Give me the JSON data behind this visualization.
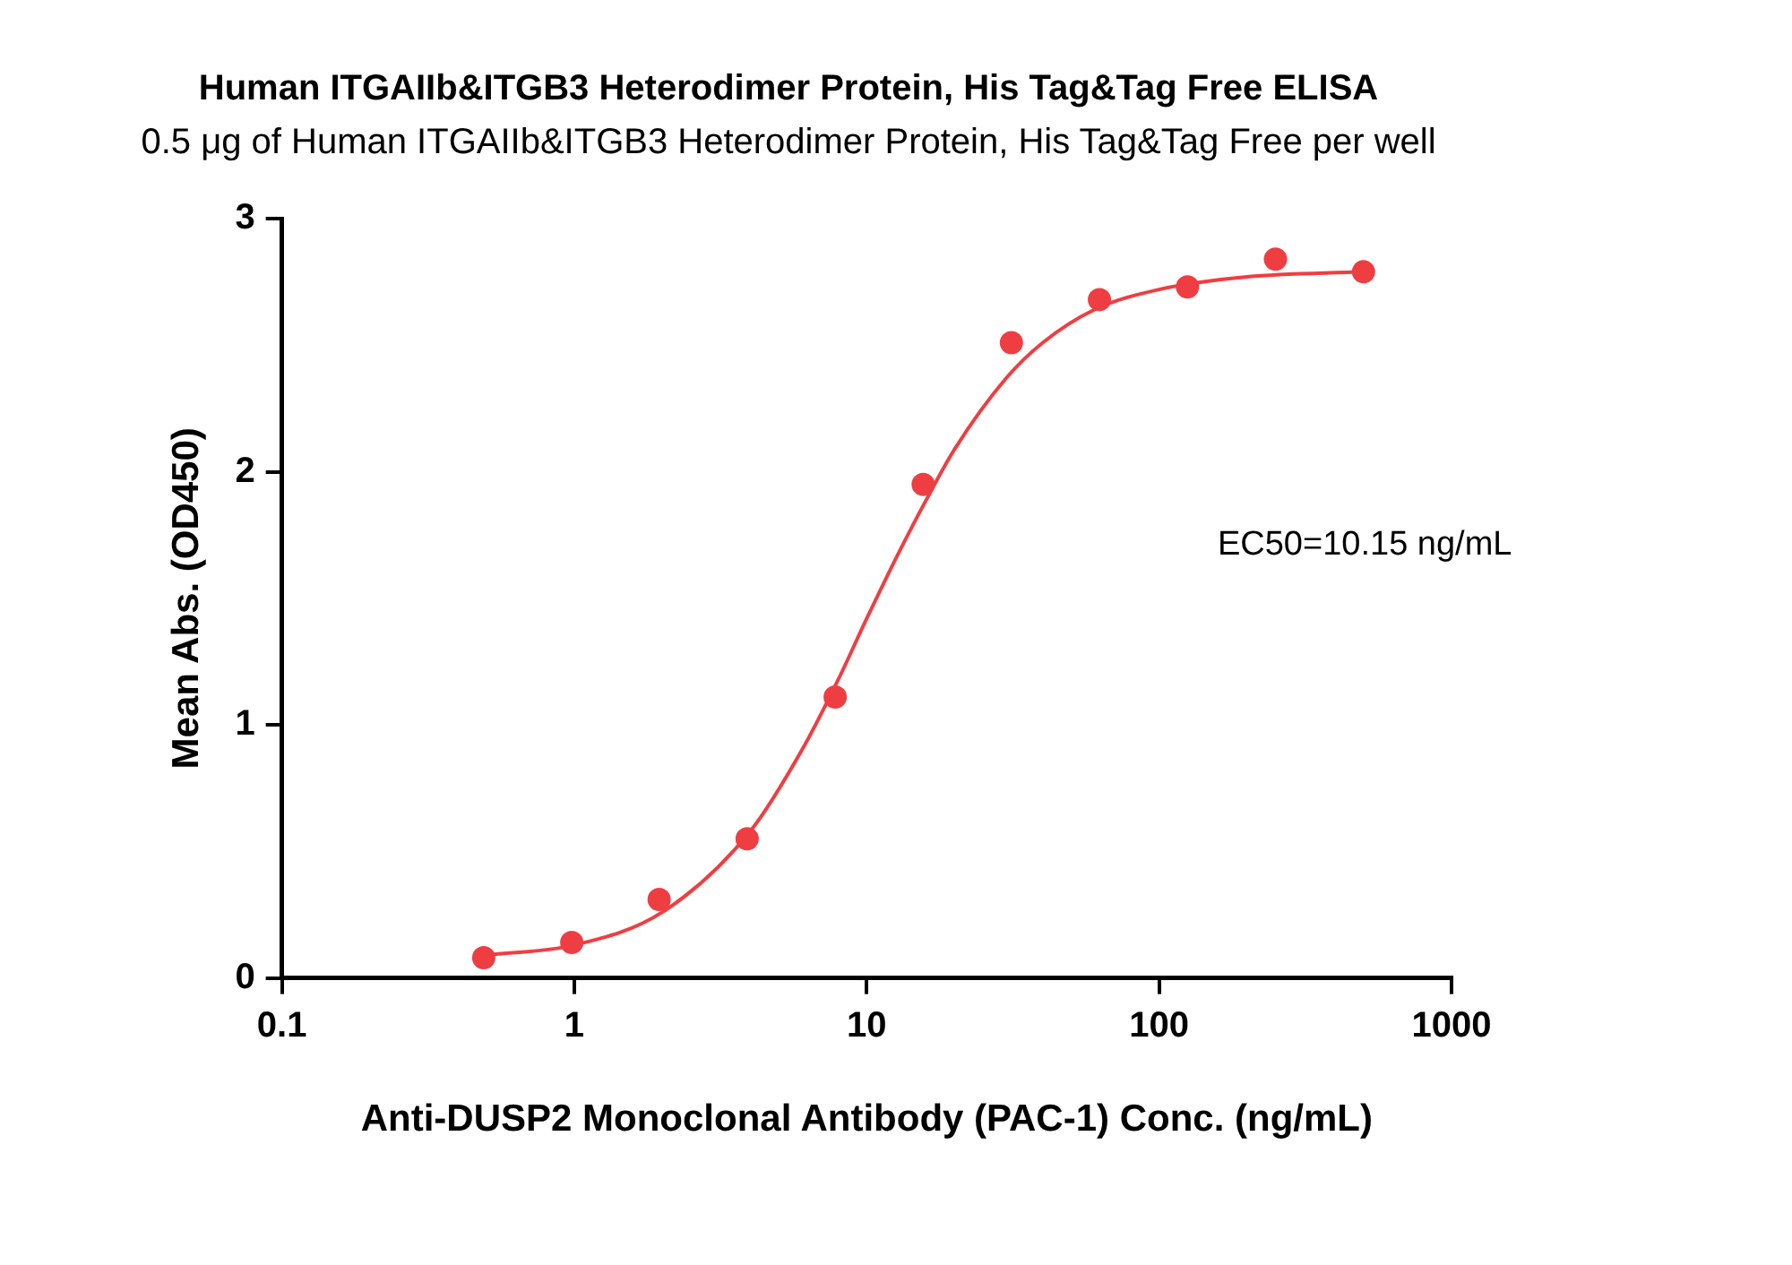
{
  "chart_data": {
    "type": "scatter",
    "title": "Human ITGAIIb&ITGB3 Heterodimer Protein, His Tag&Tag Free ELISA",
    "subtitle": "0.5 μg of Human ITGAIIb&ITGB3 Heterodimer Protein, His Tag&Tag Free per well",
    "xlabel": "Anti-DUSP2 Monoclonal Antibody (PAC-1) Conc. (ng/mL)",
    "ylabel": "Mean Abs. (OD450)",
    "annotations": [
      "EC50=10.15 ng/mL"
    ],
    "log": "x",
    "xlim": [
      0.1,
      1000
    ],
    "xticks": [
      0.1,
      1,
      10,
      100,
      1000
    ],
    "ylim": [
      0,
      3
    ],
    "yticks": [
      0,
      1,
      2,
      3
    ],
    "grid": false,
    "legend": false,
    "marker": "circle",
    "series": [
      {
        "color": "#ef3e42",
        "x": [
          0.49,
          0.98,
          1.95,
          3.9,
          7.8,
          15.6,
          31.25,
          62.5,
          125,
          250,
          500
        ],
        "values": [
          0.08,
          0.14,
          0.31,
          0.55,
          1.11,
          1.95,
          2.51,
          2.68,
          2.73,
          2.84,
          2.79
        ]
      },
      {
        "type": "line",
        "color": "#ef3e42",
        "marker": "none",
        "x": [
          0.5,
          1,
          2,
          4,
          6,
          8,
          10,
          13,
          16,
          20,
          30,
          40,
          60,
          100,
          200,
          500
        ],
        "values": [
          0.09,
          0.13,
          0.26,
          0.58,
          0.9,
          1.18,
          1.42,
          1.69,
          1.89,
          2.09,
          2.37,
          2.51,
          2.64,
          2.72,
          2.77,
          2.79
        ]
      }
    ]
  }
}
